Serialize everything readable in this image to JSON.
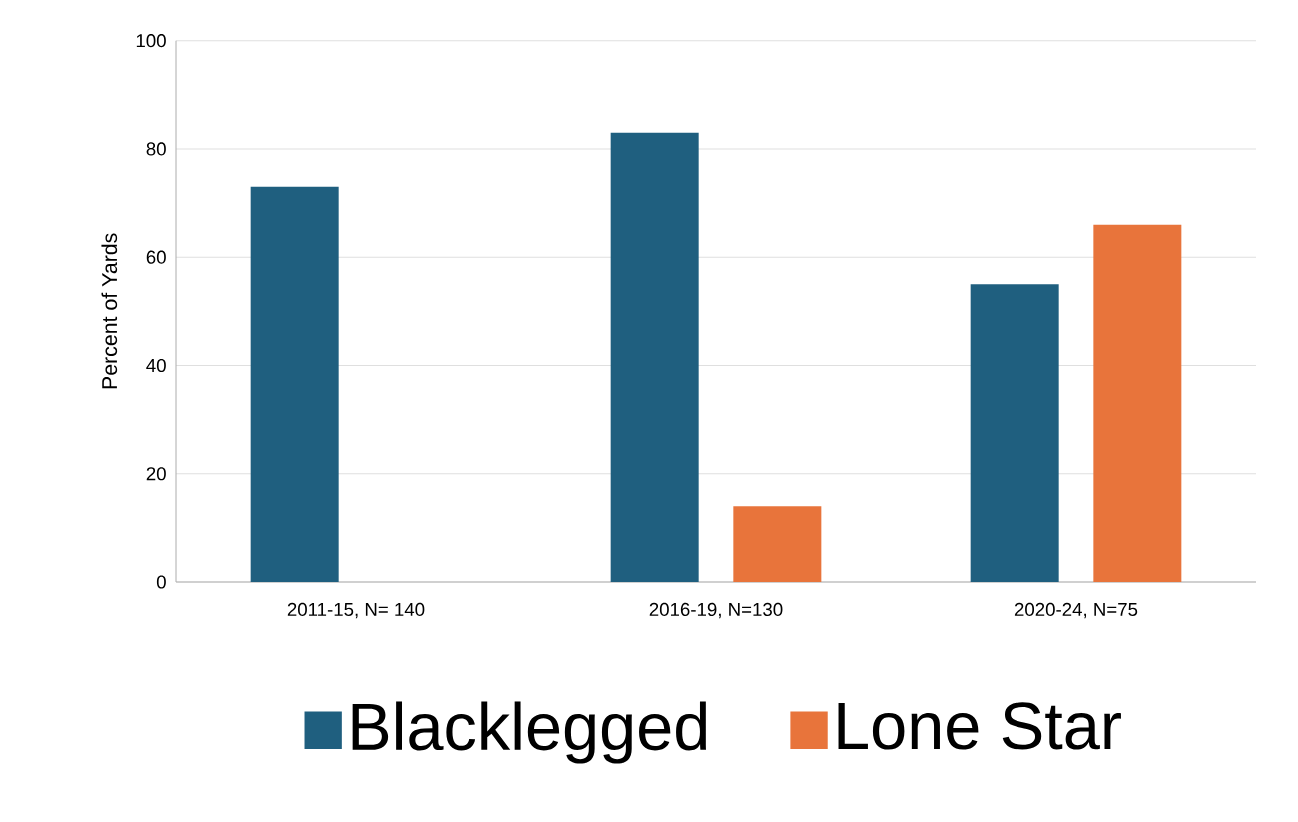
{
  "chart_data": {
    "type": "bar",
    "ylabel": "Percent of Yards",
    "categories": [
      "2011-15, N= 140",
      "2016-19, N=130",
      "2020-24, N=75"
    ],
    "series": [
      {
        "name": "Blacklegged",
        "color": "#1f5f7f",
        "values": [
          73,
          83,
          55
        ]
      },
      {
        "name": "Lone Star",
        "color": "#e8743b",
        "values": [
          null,
          14,
          66
        ]
      }
    ],
    "ylim": [
      0,
      100
    ],
    "yticks": [
      0,
      20,
      40,
      60,
      80,
      100
    ],
    "grid": "y",
    "legend": "bottom"
  }
}
